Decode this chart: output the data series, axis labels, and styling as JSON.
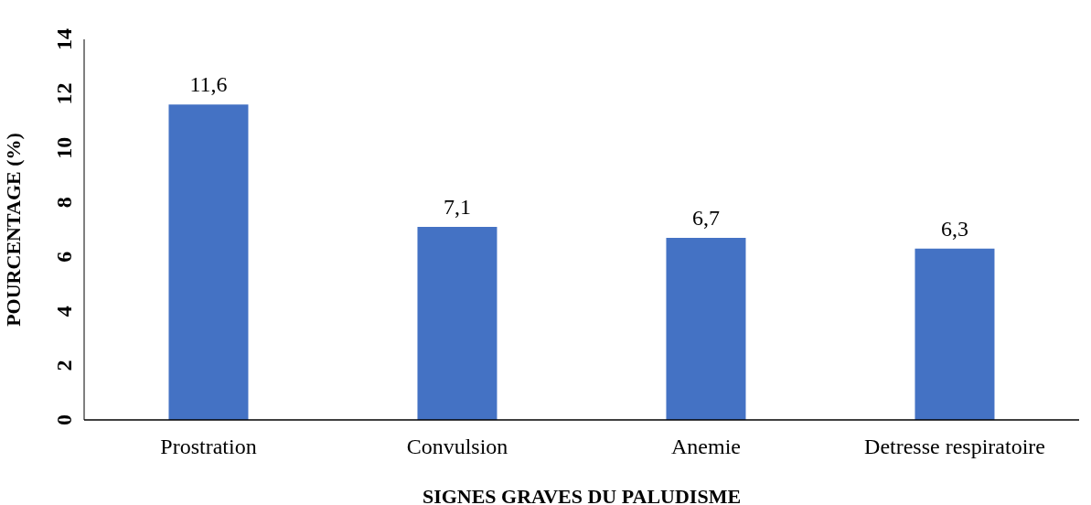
{
  "chart_data": {
    "type": "bar",
    "xlabel": "SIGNES GRAVES DU PALUDISME",
    "ylabel": "POURCENTAGE (%)",
    "categories": [
      "Prostration",
      "Convulsion",
      "Anemie",
      "Detresse respiratoire"
    ],
    "values": [
      11.6,
      7.1,
      6.7,
      6.3
    ],
    "value_labels": [
      "11,6",
      "7,1",
      "6,7",
      "6,3"
    ],
    "color": "#4472c4",
    "ylim": [
      0,
      14
    ],
    "yticks": [
      0,
      2,
      4,
      6,
      8,
      10,
      12,
      14
    ]
  }
}
